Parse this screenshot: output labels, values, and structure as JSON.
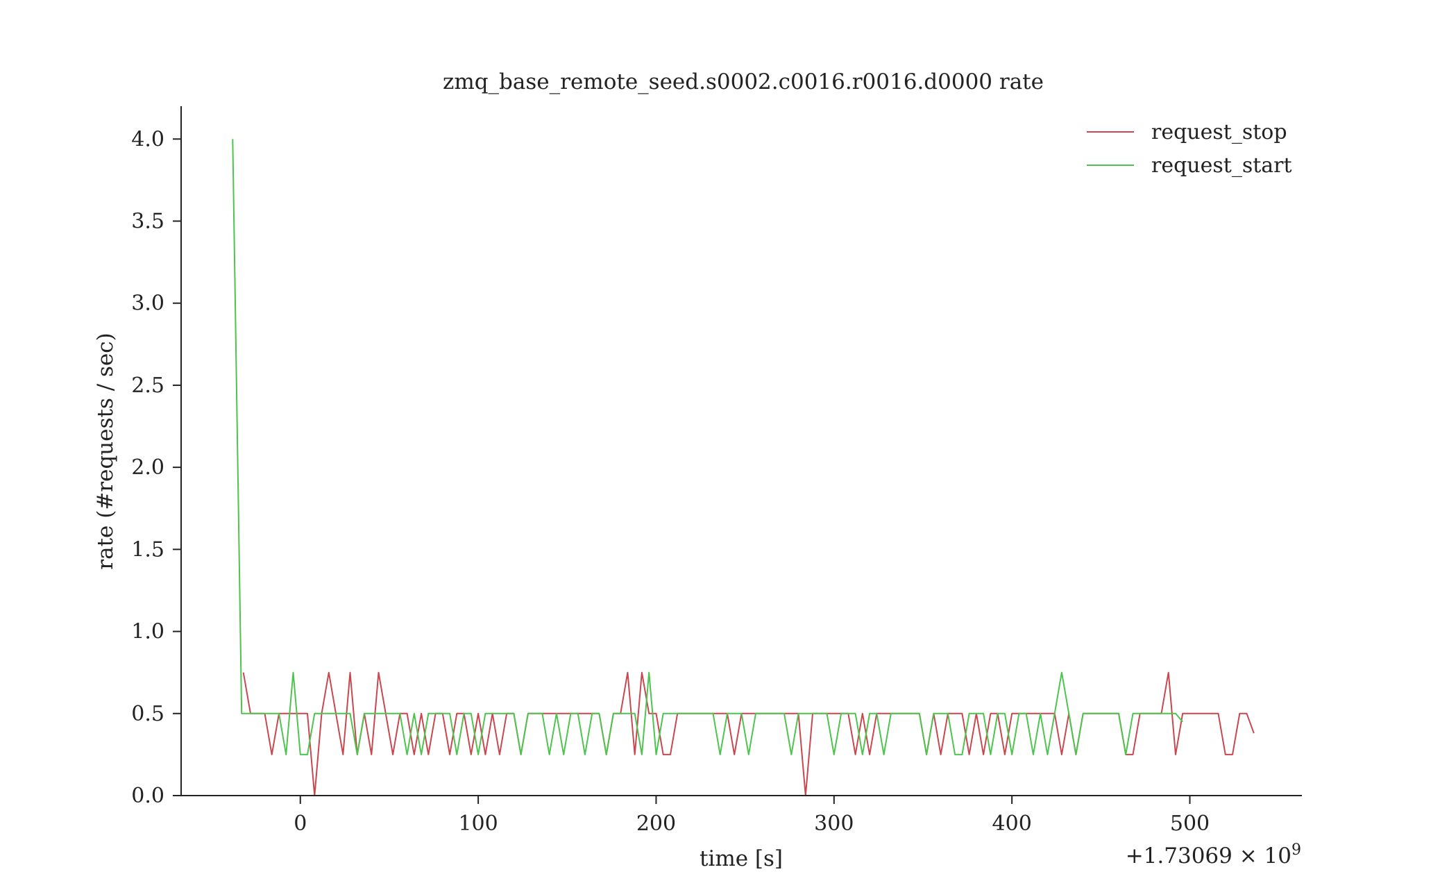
{
  "chart_data": {
    "type": "line",
    "title": "zmq_base_remote_seed.s0002.c0016.r0016.d0000 rate",
    "xlabel": "time [s]",
    "ylabel": "rate (#requests / sec)",
    "x_offset_label": "+1.73069 × 10",
    "x_offset_exponent": "9",
    "xlim": [
      -67,
      563
    ],
    "ylim": [
      0,
      4.2
    ],
    "xticks": [
      0,
      100,
      200,
      300,
      400,
      500
    ],
    "xtick_labels": [
      "0",
      "100",
      "200",
      "300",
      "400",
      "500"
    ],
    "yticks": [
      0.0,
      0.5,
      1.0,
      1.5,
      2.0,
      2.5,
      3.0,
      3.5,
      4.0
    ],
    "ytick_labels": [
      "0.0",
      "0.5",
      "1.0",
      "1.5",
      "2.0",
      "2.5",
      "3.0",
      "3.5",
      "4.0"
    ],
    "grid": false,
    "legend_position": "top-right",
    "series": [
      {
        "name": "request_stop",
        "color": "#c9474f",
        "x": [
          -32,
          -28,
          -20,
          -16,
          -12,
          -8,
          -4,
          0,
          4,
          8,
          12,
          16,
          20,
          24,
          28,
          32,
          36,
          40,
          44,
          48,
          52,
          56,
          60,
          64,
          68,
          72,
          76,
          80,
          84,
          88,
          92,
          96,
          100,
          104,
          108,
          112,
          116,
          120,
          124,
          128,
          132,
          136,
          140,
          144,
          148,
          152,
          156,
          160,
          164,
          168,
          172,
          176,
          180,
          184,
          188,
          192,
          196,
          200,
          204,
          208,
          212,
          216,
          220,
          224,
          228,
          232,
          236,
          240,
          244,
          248,
          252,
          256,
          260,
          264,
          268,
          272,
          276,
          280,
          284,
          288,
          292,
          296,
          300,
          304,
          308,
          312,
          316,
          320,
          324,
          328,
          332,
          336,
          340,
          344,
          348,
          352,
          356,
          360,
          364,
          368,
          372,
          376,
          380,
          384,
          388,
          392,
          396,
          400,
          404,
          408,
          412,
          416,
          420,
          424,
          428,
          432,
          436,
          440,
          444,
          448,
          452,
          456,
          460,
          464,
          468,
          472,
          476,
          480,
          484,
          488,
          492,
          496,
          500,
          504,
          508,
          512,
          516,
          520,
          524,
          528,
          532,
          536
        ],
        "values": [
          0.75,
          0.5,
          0.5,
          0.25,
          0.5,
          0.5,
          0.5,
          0.5,
          0.5,
          0.0,
          0.5,
          0.75,
          0.5,
          0.25,
          0.75,
          0.25,
          0.5,
          0.25,
          0.75,
          0.5,
          0.25,
          0.5,
          0.5,
          0.25,
          0.5,
          0.25,
          0.5,
          0.5,
          0.25,
          0.5,
          0.5,
          0.25,
          0.5,
          0.25,
          0.5,
          0.25,
          0.5,
          0.5,
          0.25,
          0.5,
          0.5,
          0.5,
          0.5,
          0.5,
          0.5,
          0.5,
          0.5,
          0.5,
          0.5,
          0.5,
          0.25,
          0.5,
          0.5,
          0.75,
          0.25,
          0.75,
          0.5,
          0.5,
          0.25,
          0.25,
          0.5,
          0.5,
          0.5,
          0.5,
          0.5,
          0.5,
          0.5,
          0.5,
          0.25,
          0.5,
          0.5,
          0.5,
          0.5,
          0.5,
          0.5,
          0.5,
          0.5,
          0.5,
          0.0,
          0.5,
          0.5,
          0.5,
          0.5,
          0.5,
          0.5,
          0.25,
          0.5,
          0.25,
          0.5,
          0.5,
          0.5,
          0.5,
          0.5,
          0.5,
          0.5,
          0.25,
          0.5,
          0.25,
          0.5,
          0.5,
          0.5,
          0.25,
          0.5,
          0.25,
          0.5,
          0.5,
          0.25,
          0.5,
          0.5,
          0.5,
          0.5,
          0.5,
          0.5,
          0.5,
          0.25,
          0.5,
          0.25,
          0.5,
          0.5,
          0.5,
          0.5,
          0.5,
          0.5,
          0.25,
          0.25,
          0.5,
          0.5,
          0.5,
          0.5,
          0.75,
          0.25,
          0.5,
          0.5,
          0.5,
          0.5,
          0.5,
          0.5,
          0.25,
          0.25,
          0.5,
          0.5,
          0.38
        ]
      },
      {
        "name": "request_start",
        "color": "#4dc44d",
        "x": [
          -38,
          -33,
          -28,
          -24,
          -20,
          -16,
          -12,
          -8,
          -4,
          0,
          4,
          8,
          12,
          16,
          20,
          24,
          28,
          32,
          36,
          40,
          44,
          48,
          52,
          56,
          60,
          64,
          68,
          72,
          76,
          80,
          84,
          88,
          92,
          96,
          100,
          104,
          108,
          112,
          116,
          120,
          124,
          128,
          132,
          136,
          140,
          144,
          148,
          152,
          156,
          160,
          164,
          168,
          172,
          176,
          180,
          184,
          188,
          192,
          196,
          200,
          204,
          208,
          212,
          216,
          220,
          224,
          228,
          232,
          236,
          240,
          244,
          248,
          252,
          256,
          260,
          264,
          268,
          272,
          276,
          280,
          284,
          288,
          292,
          296,
          300,
          304,
          308,
          312,
          316,
          320,
          324,
          328,
          332,
          336,
          340,
          344,
          348,
          352,
          356,
          360,
          364,
          368,
          372,
          376,
          380,
          384,
          388,
          392,
          396,
          400,
          404,
          408,
          412,
          416,
          420,
          424,
          428,
          432,
          436,
          440,
          444,
          448,
          452,
          456,
          460,
          464,
          468,
          472,
          476,
          480,
          484,
          488,
          492,
          496
        ],
        "values": [
          4.0,
          0.5,
          0.5,
          0.5,
          0.5,
          0.5,
          0.5,
          0.25,
          0.75,
          0.25,
          0.25,
          0.5,
          0.5,
          0.5,
          0.5,
          0.5,
          0.5,
          0.25,
          0.5,
          0.5,
          0.5,
          0.5,
          0.5,
          0.5,
          0.25,
          0.5,
          0.25,
          0.5,
          0.5,
          0.5,
          0.5,
          0.25,
          0.5,
          0.5,
          0.25,
          0.5,
          0.5,
          0.5,
          0.5,
          0.5,
          0.25,
          0.5,
          0.5,
          0.5,
          0.25,
          0.5,
          0.25,
          0.5,
          0.5,
          0.25,
          0.5,
          0.5,
          0.25,
          0.5,
          0.5,
          0.5,
          0.5,
          0.25,
          0.75,
          0.25,
          0.5,
          0.5,
          0.5,
          0.5,
          0.5,
          0.5,
          0.5,
          0.5,
          0.25,
          0.5,
          0.5,
          0.5,
          0.25,
          0.5,
          0.5,
          0.5,
          0.5,
          0.5,
          0.25,
          0.5,
          0.5,
          0.5,
          0.5,
          0.5,
          0.25,
          0.5,
          0.5,
          0.5,
          0.25,
          0.5,
          0.5,
          0.25,
          0.5,
          0.5,
          0.5,
          0.5,
          0.5,
          0.25,
          0.5,
          0.5,
          0.5,
          0.25,
          0.25,
          0.5,
          0.5,
          0.5,
          0.25,
          0.5,
          0.5,
          0.25,
          0.5,
          0.5,
          0.25,
          0.5,
          0.25,
          0.5,
          0.75,
          0.5,
          0.25,
          0.5,
          0.5,
          0.5,
          0.5,
          0.5,
          0.5,
          0.25,
          0.5,
          0.5,
          0.5,
          0.5,
          0.5,
          0.5,
          0.5,
          0.45
        ]
      }
    ]
  }
}
